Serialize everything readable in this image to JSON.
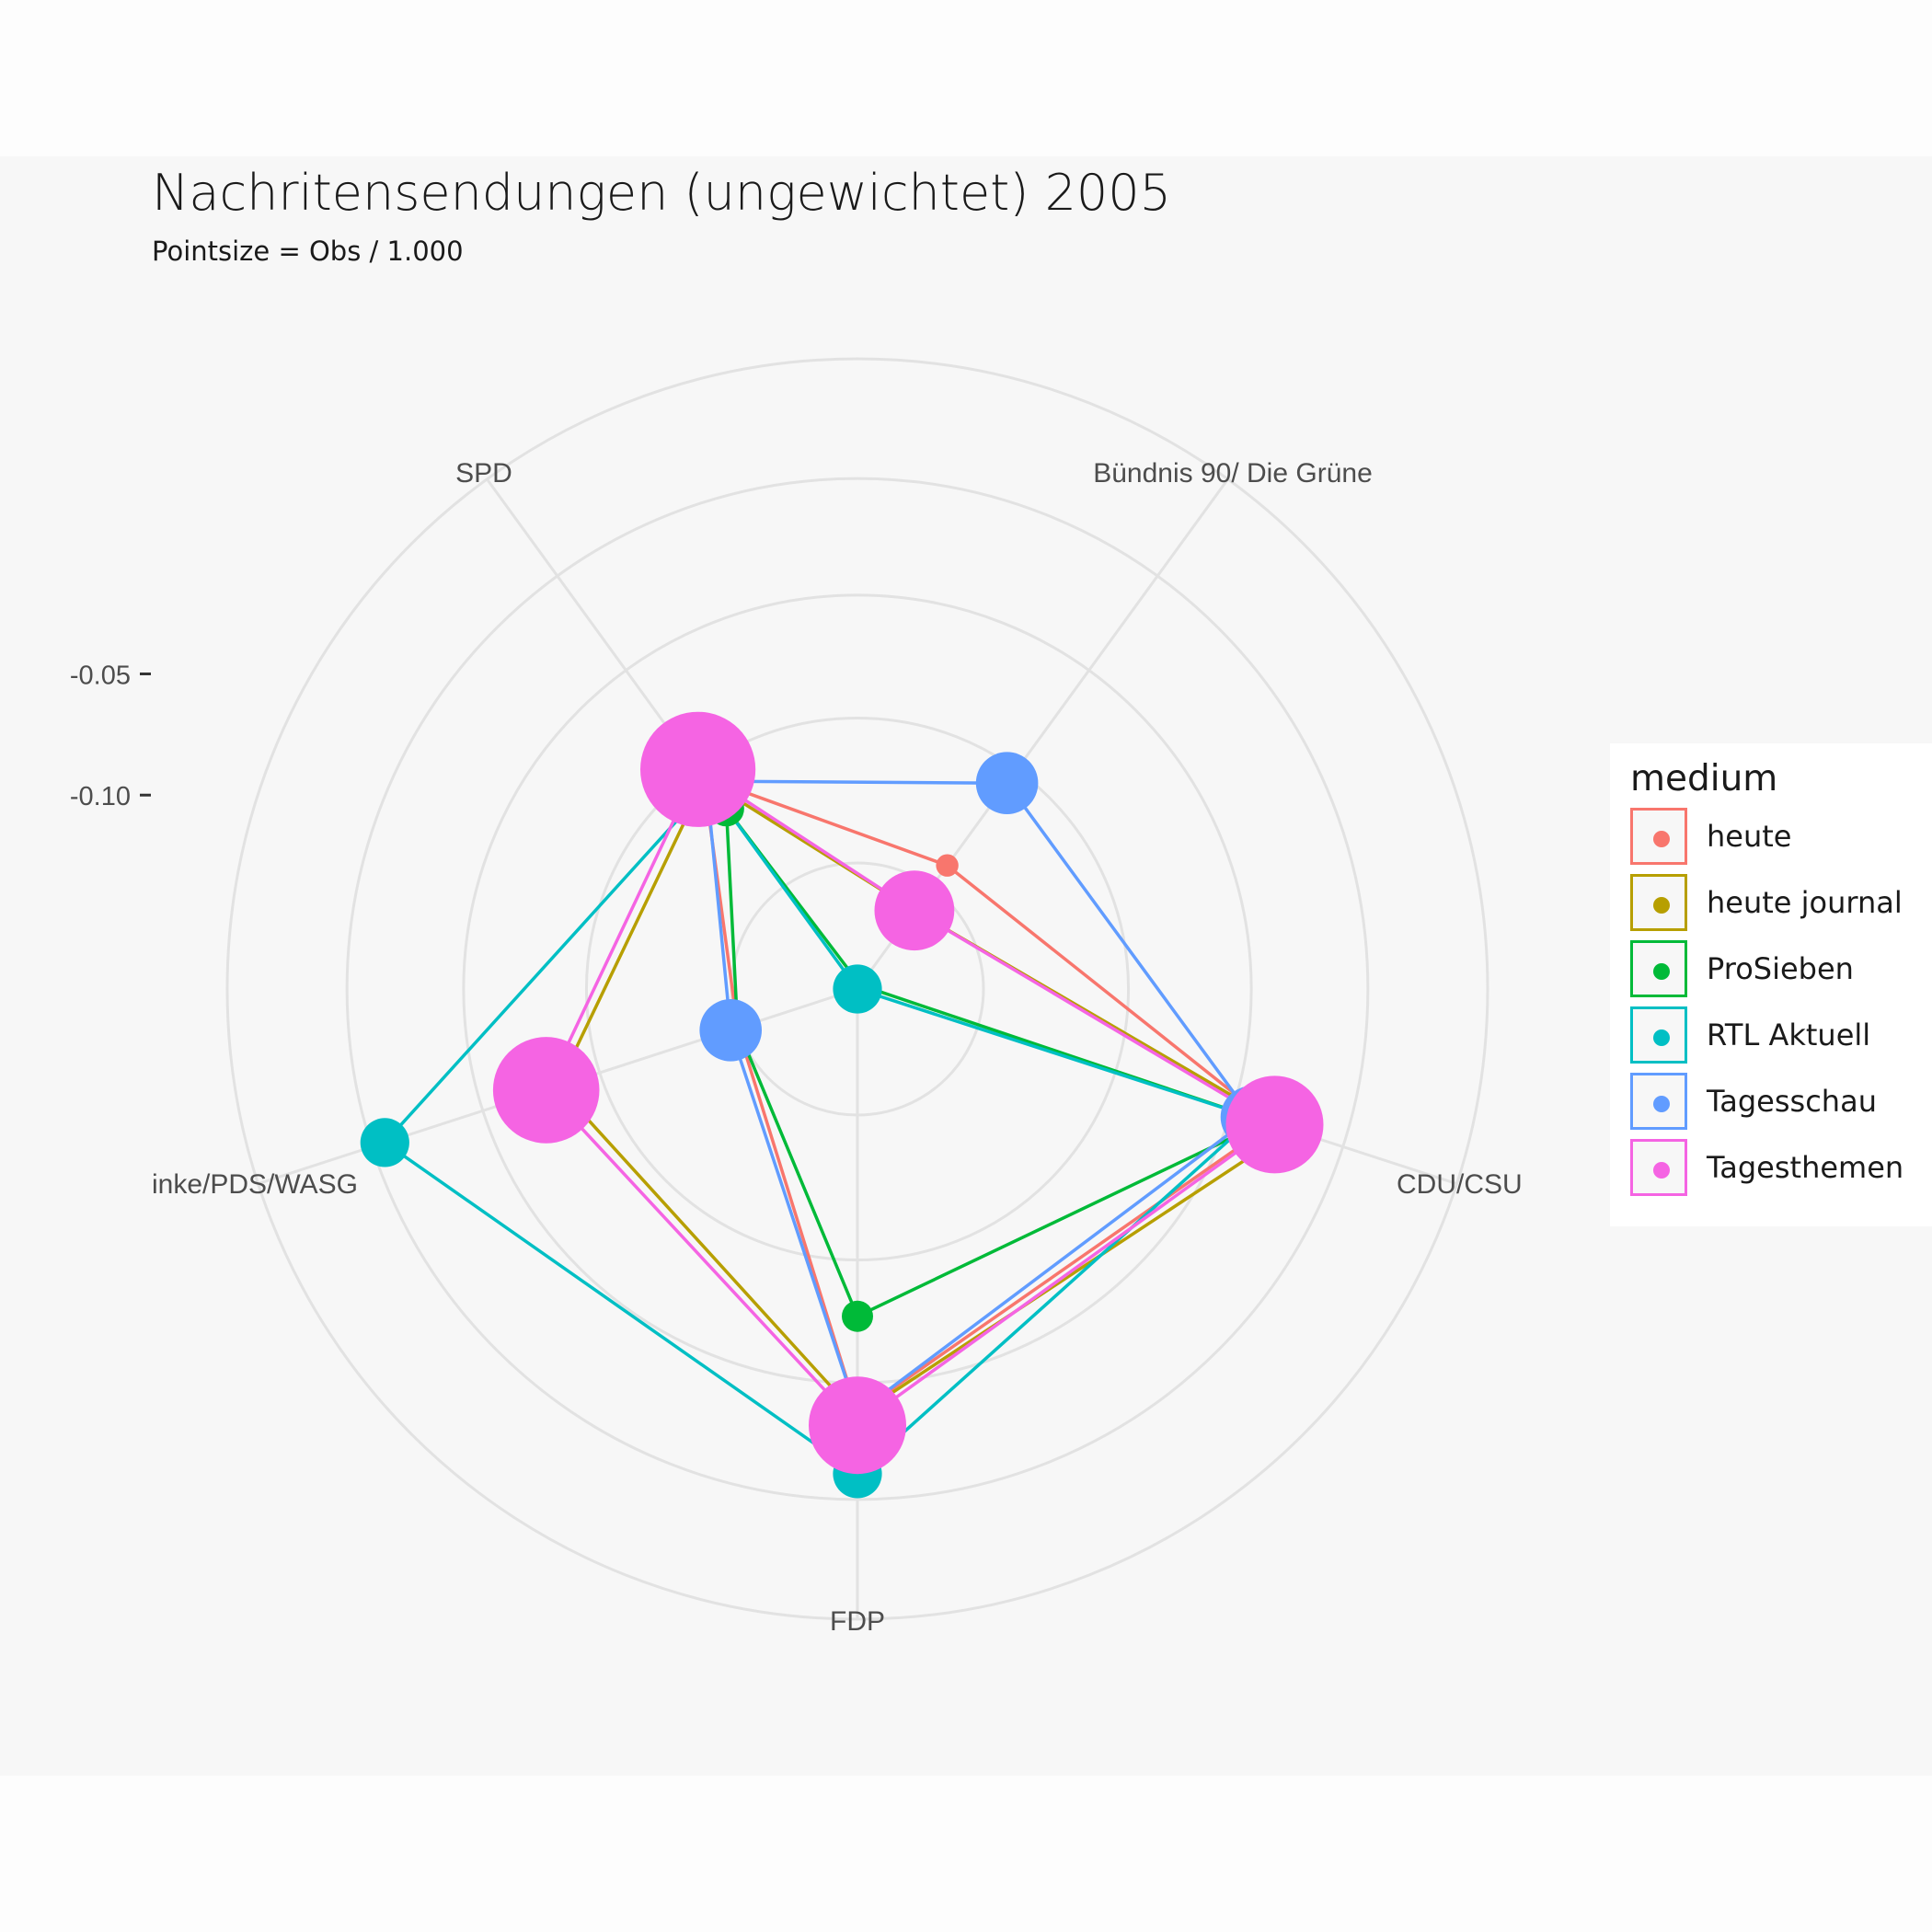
{
  "chart_data": {
    "type": "radar",
    "title": "Nachritensendungen (ungewichtet) 2005",
    "subtitle": "Pointsize = Obs / 1.000",
    "axes": [
      "SPD",
      "Bündnis 90/ Die Grüne",
      "CDU/CSU",
      "FDP",
      "inke/PDS/WASG"
    ],
    "radial_ticks": [
      "-0.05",
      "-0.10"
    ],
    "radial_range": [
      -0.18,
      0.08
    ],
    "legend": {
      "title": "medium",
      "position": "right"
    },
    "series": [
      {
        "name": "heute",
        "color": "#F8766D",
        "values": [
          -0.072,
          -0.117,
          0.0,
          -0.005,
          -0.128
        ],
        "sizes": [
          3,
          1.5,
          3,
          3,
          3
        ]
      },
      {
        "name": "heute journal",
        "color": "#B79F00",
        "values": [
          -0.073,
          -0.14,
          0.008,
          -0.004,
          -0.05
        ],
        "sizes": [
          3,
          3,
          3,
          3,
          3
        ]
      },
      {
        "name": "ProSieben",
        "color": "#00BA38",
        "values": [
          -0.088,
          -0.178,
          -0.003,
          -0.045,
          -0.128
        ],
        "sizes": [
          3,
          2.5,
          2.5,
          2.5,
          2.5
        ]
      },
      {
        "name": "RTL Aktuell",
        "color": "#00BFC4",
        "values": [
          -0.076,
          -0.18,
          -0.008,
          0.02,
          0.025
        ],
        "sizes": [
          4.5,
          4.5,
          4.5,
          4.5,
          4.5
        ]
      },
      {
        "name": "Tagesschau",
        "color": "#619CFF",
        "values": [
          -0.074,
          -0.075,
          -0.009,
          -0.005,
          -0.125
        ],
        "sizes": [
          6,
          6,
          6,
          6,
          6
        ]
      },
      {
        "name": "Tagesthemen",
        "color": "#F564E3",
        "values": [
          -0.068,
          -0.14,
          0.001,
          0.0,
          -0.045
        ],
        "sizes": [
          12,
          8,
          10,
          10,
          11
        ]
      }
    ]
  }
}
